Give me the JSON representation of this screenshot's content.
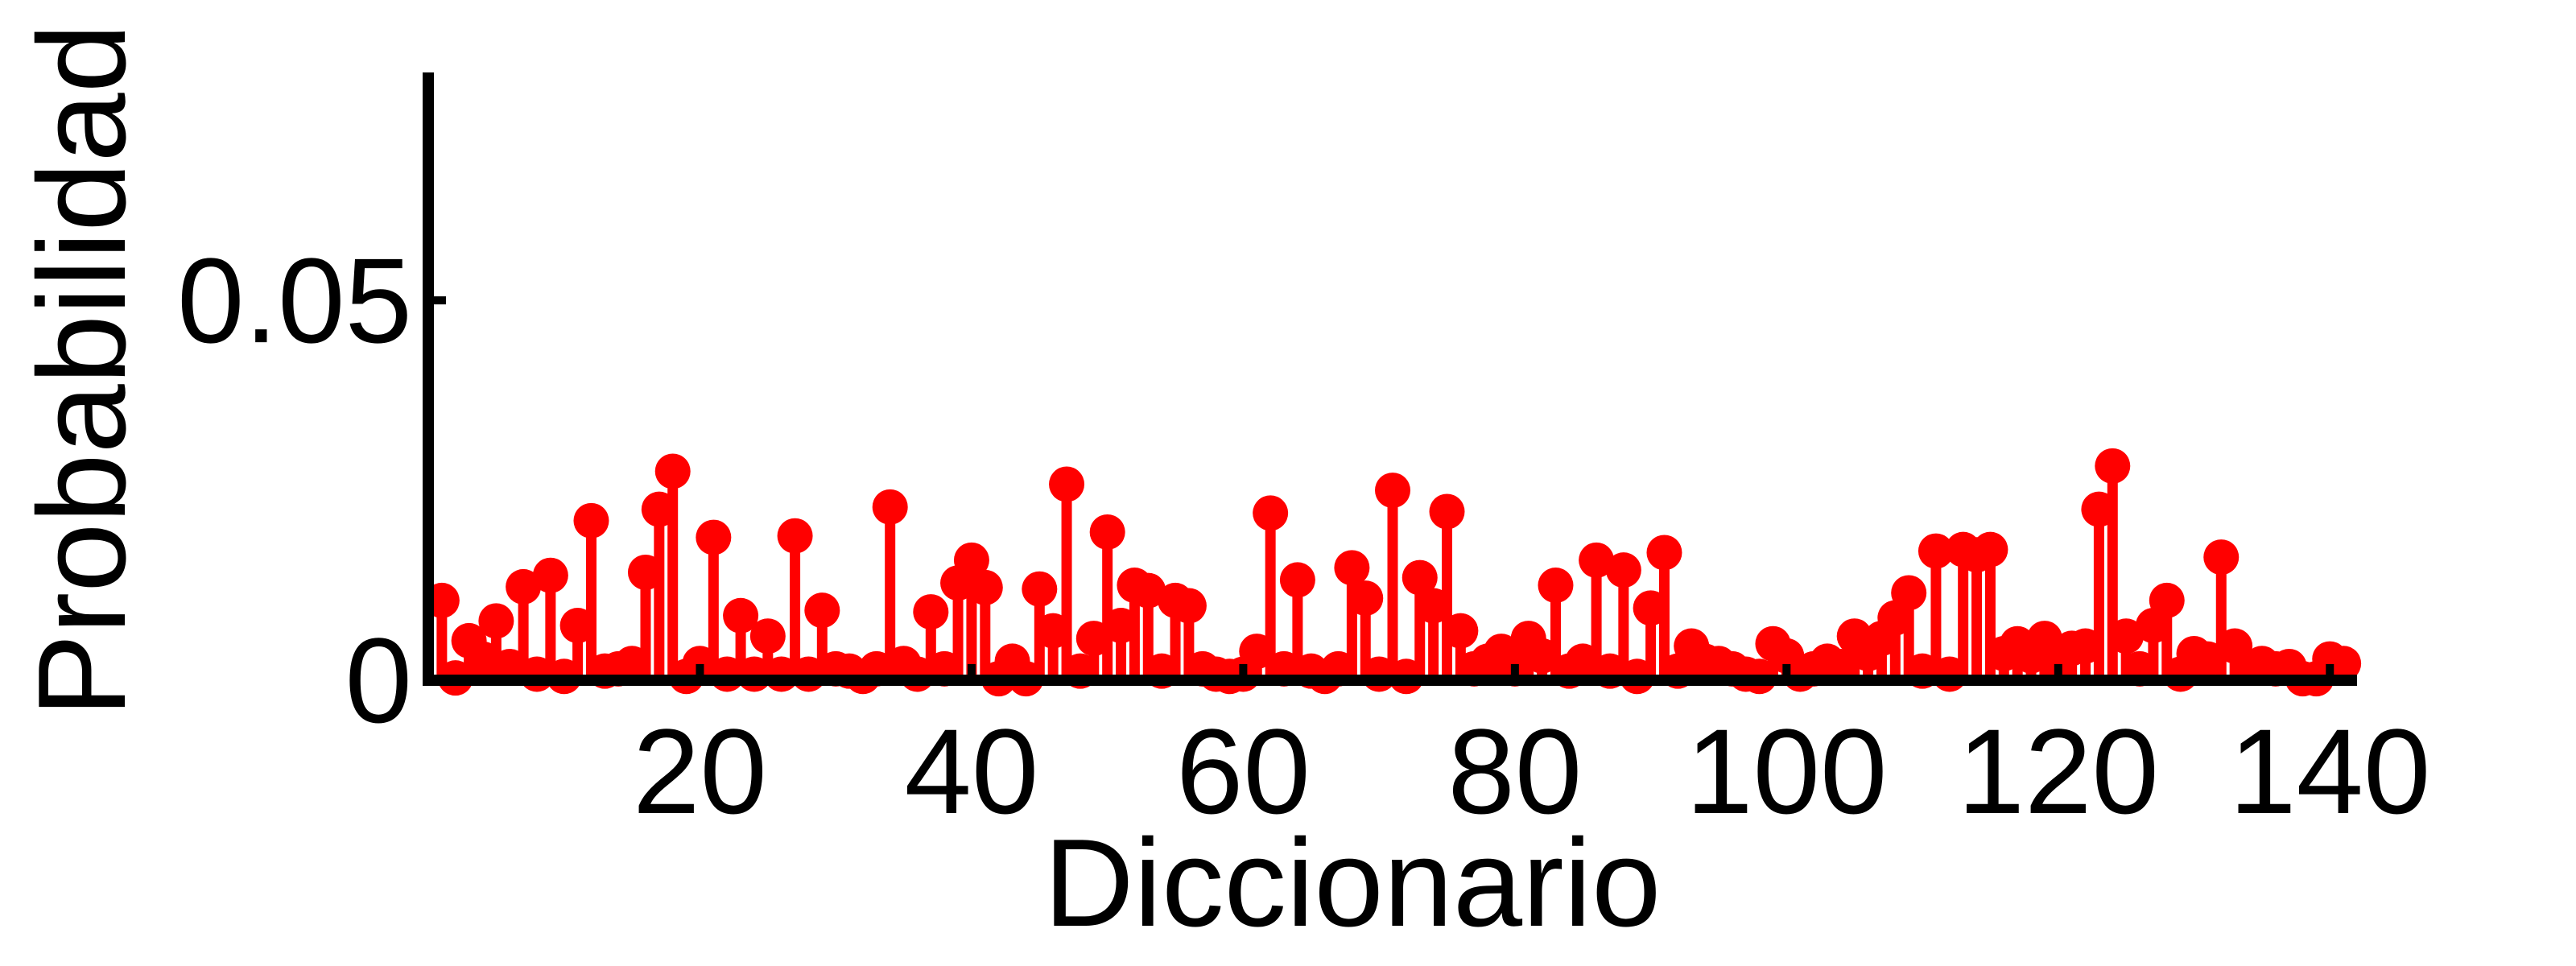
{
  "chart_data": {
    "type": "stem",
    "xlabel": "Diccionario",
    "ylabel": "Probabilidad",
    "xlim": [
      0,
      142
    ],
    "ylim": [
      0,
      0.08
    ],
    "xticks": [
      20,
      40,
      60,
      80,
      100,
      120,
      140
    ],
    "xtick_labels": [
      "20",
      "40",
      "60",
      "80",
      "100",
      "120",
      "140"
    ],
    "yticks": [
      0,
      0.05
    ],
    "ytick_labels": [
      "0",
      "0.05"
    ],
    "grid": false,
    "legend": "none",
    "color": "#ff0000",
    "x": [
      1,
      2,
      3,
      4,
      5,
      6,
      7,
      8,
      9,
      10,
      11,
      12,
      13,
      14,
      15,
      16,
      17,
      18,
      19,
      20,
      21,
      22,
      23,
      24,
      25,
      26,
      27,
      28,
      29,
      30,
      31,
      32,
      33,
      34,
      35,
      36,
      37,
      38,
      39,
      40,
      41,
      42,
      43,
      44,
      45,
      46,
      47,
      48,
      49,
      50,
      51,
      52,
      53,
      54,
      55,
      56,
      57,
      58,
      59,
      60,
      61,
      62,
      63,
      64,
      65,
      66,
      67,
      68,
      69,
      70,
      71,
      72,
      73,
      74,
      75,
      76,
      77,
      78,
      79,
      80,
      81,
      82,
      83,
      84,
      85,
      86,
      87,
      88,
      89,
      90,
      91,
      92,
      93,
      94,
      95,
      96,
      97,
      98,
      99,
      100,
      101,
      102,
      103,
      104,
      105,
      106,
      107,
      108,
      109,
      110,
      111,
      112,
      113,
      114,
      115,
      116,
      117,
      118,
      119,
      120,
      121,
      122,
      123,
      124,
      125,
      126,
      127,
      128,
      129,
      130,
      131,
      132,
      133,
      134,
      135,
      136,
      137,
      138,
      139,
      140,
      141
    ],
    "values": [
      0.0105,
      0.0003,
      0.0052,
      0.0028,
      0.0078,
      0.0018,
      0.0123,
      0.0008,
      0.0138,
      0.0005,
      0.0072,
      0.021,
      0.0012,
      0.0015,
      0.0022,
      0.0142,
      0.0225,
      0.0275,
      0.0005,
      0.0022,
      0.0188,
      0.0008,
      0.0085,
      0.0008,
      0.0058,
      0.0008,
      0.019,
      0.0008,
      0.0092,
      0.0015,
      0.0012,
      0.0005,
      0.0015,
      0.0228,
      0.0022,
      0.0008,
      0.009,
      0.0015,
      0.0128,
      0.0158,
      0.0122,
      0.0002,
      0.0025,
      0.0002,
      0.012,
      0.0065,
      0.0258,
      0.0012,
      0.0055,
      0.0195,
      0.0072,
      0.0125,
      0.0118,
      0.0012,
      0.0105,
      0.0098,
      0.0015,
      0.0008,
      0.0005,
      0.0008,
      0.0038,
      0.022,
      0.0015,
      0.0132,
      0.0012,
      0.0005,
      0.0015,
      0.0148,
      0.0108,
      0.0008,
      0.025,
      0.0005,
      0.0135,
      0.0098,
      0.0222,
      0.0065,
      0.0015,
      0.0025,
      0.0038,
      0.0015,
      0.0055,
      0.0032,
      0.0125,
      0.0012,
      0.0025,
      0.0158,
      0.0012,
      0.0145,
      0.0005,
      0.0095,
      0.0168,
      0.0012,
      0.0045,
      0.0025,
      0.0022,
      0.0015,
      0.0008,
      0.0005,
      0.0048,
      0.0032,
      0.0008,
      0.0015,
      0.0025,
      0.0018,
      0.0058,
      0.0035,
      0.0055,
      0.0082,
      0.0115,
      0.0012,
      0.017,
      0.0008,
      0.0172,
      0.0165,
      0.0172,
      0.0035,
      0.0048,
      0.0032,
      0.0055,
      0.0025,
      0.0042,
      0.0045,
      0.0225,
      0.0282,
      0.0058,
      0.0015,
      0.0072,
      0.0105,
      0.0008,
      0.0035,
      0.0028,
      0.0162,
      0.0045,
      0.0018,
      0.0022,
      0.0015,
      0.0018,
      0.0002,
      0.0002,
      0.0028,
      0.0022
    ]
  }
}
